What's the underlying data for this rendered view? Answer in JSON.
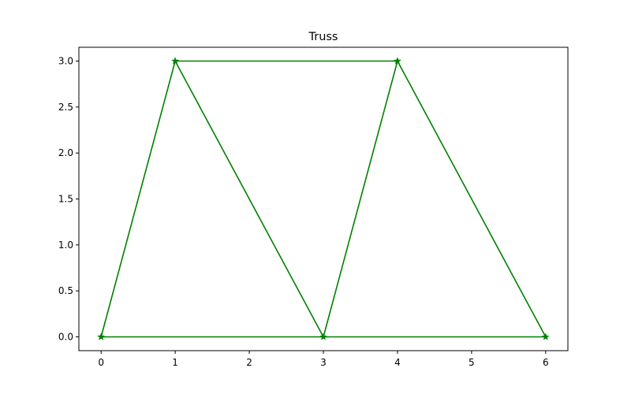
{
  "chart_data": {
    "type": "line",
    "title": "Truss",
    "xlabel": "",
    "ylabel": "",
    "xlim": [
      -0.3,
      6.3
    ],
    "ylim": [
      -0.15,
      3.15
    ],
    "x_ticks": [
      "0",
      "1",
      "2",
      "3",
      "4",
      "5",
      "6"
    ],
    "y_ticks": [
      "0.0",
      "0.5",
      "1.0",
      "1.5",
      "2.0",
      "2.5",
      "3.0"
    ],
    "grid": false,
    "legend": "none",
    "series": [
      {
        "color": "#008000",
        "marker": "star",
        "points": [
          {
            "x": 0,
            "y": 0
          },
          {
            "x": 1,
            "y": 3
          },
          {
            "x": 3,
            "y": 0
          },
          {
            "x": 4,
            "y": 3
          },
          {
            "x": 6,
            "y": 0
          },
          {
            "x": 0,
            "y": 0
          }
        ]
      },
      {
        "color": "#008000",
        "marker": "star",
        "points": [
          {
            "x": 1,
            "y": 3
          },
          {
            "x": 4,
            "y": 3
          }
        ]
      }
    ]
  }
}
